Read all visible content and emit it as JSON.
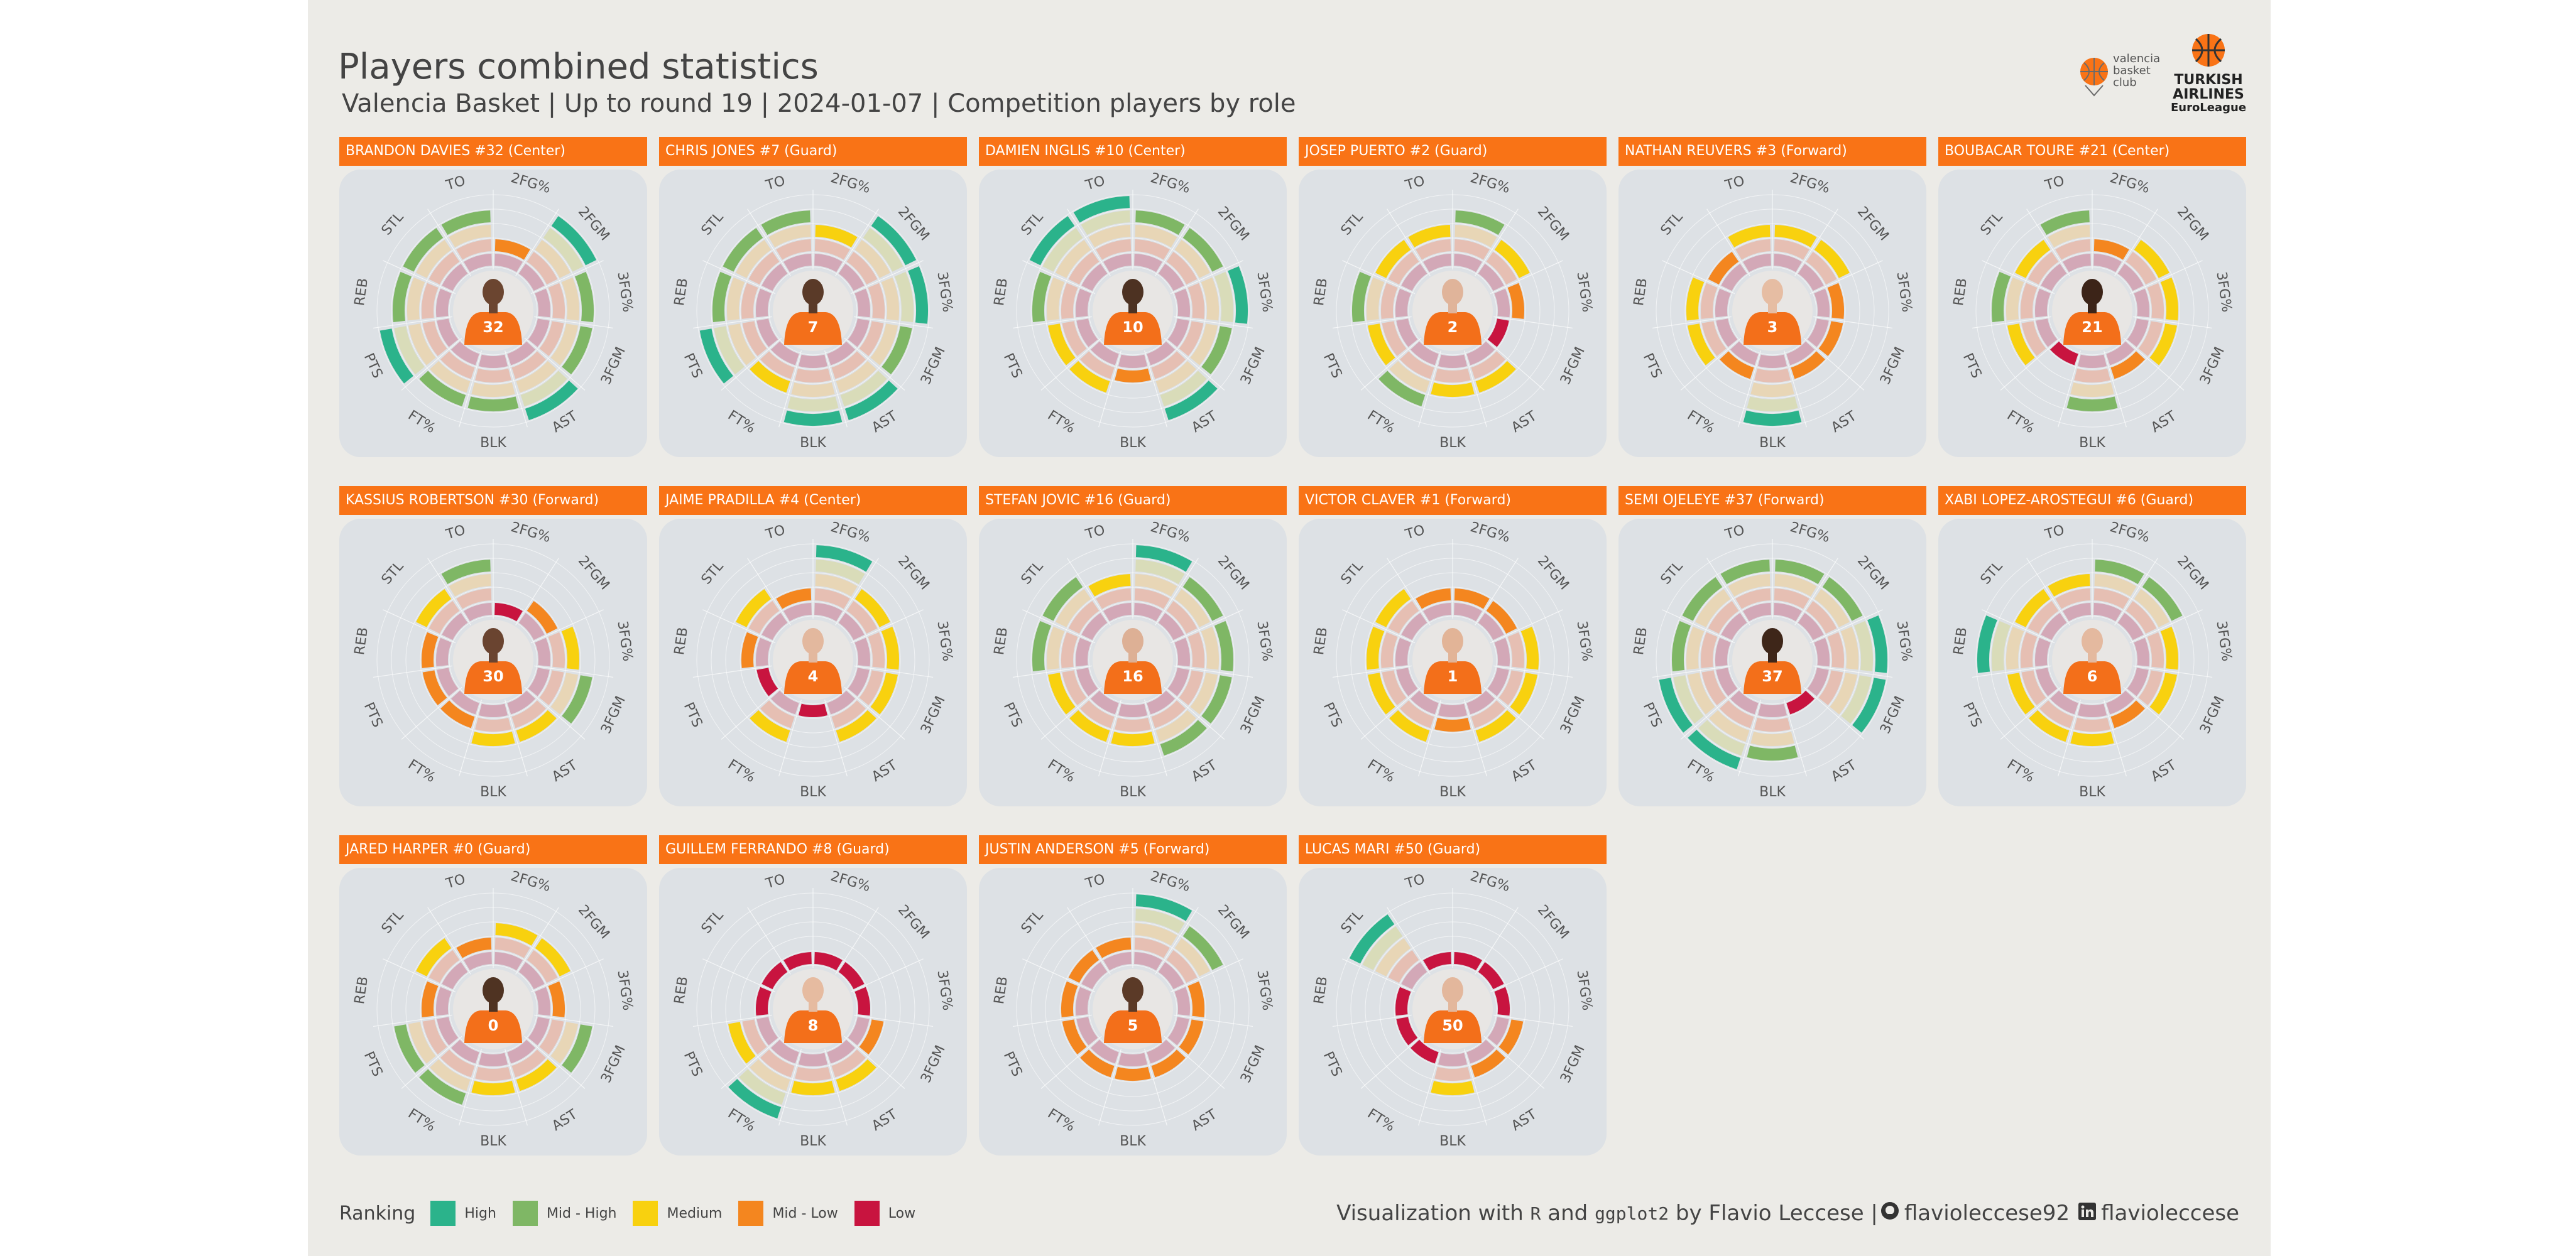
{
  "header": {
    "title": "Players combined statistics",
    "subtitle": "Valencia Basket | Up to round 19 | 2024-01-07 | Competition players by role"
  },
  "logos": {
    "club_lines": "valencia\nbasket\nclub",
    "league_line1": "TURKISH\nAIRLINES",
    "league_line2": "EuroLeague"
  },
  "colors": {
    "panel_bg": "#ecebe7",
    "header_orange": "#f97316",
    "plate": "#dde1e5",
    "high": "#2bb38b",
    "mid_high": "#7fb765",
    "medium": "#f8d10f",
    "mid_low": "#f4861f",
    "low": "#c8143f",
    "ring_bg": "#d3a8b7"
  },
  "legend": {
    "title": "Ranking",
    "items": [
      {
        "label": "High",
        "color": "#2bb38b"
      },
      {
        "label": "Mid - High",
        "color": "#7fb765"
      },
      {
        "label": "Medium",
        "color": "#f8d10f"
      },
      {
        "label": "Mid - Low",
        "color": "#f4861f"
      },
      {
        "label": "Low",
        "color": "#c8143f"
      }
    ]
  },
  "credit": {
    "prefix": "Visualization with",
    "r": "R",
    "and": "and",
    "pkg": "ggplot2",
    "by": "by Flavio Leccese |",
    "github": "flavioleccese92",
    "linkedin": "flavioleccese"
  },
  "chart_data": {
    "type": "radial-bar",
    "categories": [
      "2FG%",
      "2FGM",
      "3FG%",
      "3FGM",
      "AST",
      "BLK",
      "FT%",
      "PTS",
      "REB",
      "STL",
      "TO"
    ],
    "levels": [
      "Low",
      "Mid - Low",
      "Medium",
      "Mid - High",
      "High"
    ],
    "players": [
      {
        "label": "BRANDON DAVIES #32 (Center)",
        "number": "32",
        "skin": "#6b4530",
        "ranks": [
          2,
          5,
          4,
          4,
          5,
          4,
          4,
          5,
          4,
          4,
          4
        ]
      },
      {
        "label": "CHRIS JONES #7 (Guard)",
        "number": "7",
        "skin": "#5a3a28",
        "ranks": [
          3,
          5,
          5,
          4,
          5,
          5,
          3,
          5,
          4,
          4,
          4
        ]
      },
      {
        "label": "DAMIEN INGLIS #10 (Center)",
        "number": "10",
        "skin": "#4d3222",
        "ranks": [
          4,
          4,
          5,
          4,
          5,
          2,
          3,
          3,
          4,
          5,
          5
        ]
      },
      {
        "label": "JOSEP PUERTO #2 (Guard)",
        "number": "2",
        "skin": "#e0b49a",
        "ranks": [
          4,
          3,
          2,
          1,
          3,
          3,
          4,
          3,
          4,
          3,
          3
        ]
      },
      {
        "label": "NATHAN REUVERS #3 (Forward)",
        "number": "3",
        "skin": "#e6bda3",
        "ranks": [
          3,
          3,
          2,
          2,
          2,
          5,
          2,
          3,
          3,
          2,
          3
        ]
      },
      {
        "label": "BOUBACAR TOURE #21 (Center)",
        "number": "21",
        "skin": "#3c2418",
        "ranks": [
          2,
          3,
          3,
          3,
          2,
          4,
          1,
          3,
          4,
          3,
          4
        ]
      },
      {
        "label": "KASSIUS ROBERTSON #30 (Forward)",
        "number": "30",
        "skin": "#6a4430",
        "ranks": [
          1,
          2,
          3,
          4,
          3,
          3,
          2,
          2,
          2,
          3,
          4
        ]
      },
      {
        "label": "JAIME PRADILLA #4 (Center)",
        "number": "4",
        "skin": "#e3b89e",
        "ranks": [
          5,
          3,
          3,
          3,
          3,
          1,
          3,
          1,
          2,
          3,
          2
        ]
      },
      {
        "label": "STEFAN JOVIC #16 (Guard)",
        "number": "16",
        "skin": "#ddb095",
        "ranks": [
          5,
          4,
          4,
          4,
          4,
          3,
          3,
          3,
          4,
          4,
          3
        ]
      },
      {
        "label": "VICTOR CLAVER #1 (Forward)",
        "number": "1",
        "skin": "#e2b497",
        "ranks": [
          2,
          2,
          3,
          3,
          3,
          2,
          3,
          3,
          3,
          3,
          2
        ]
      },
      {
        "label": "SEMI OJELEYE #37 (Forward)",
        "number": "37",
        "skin": "#3e2619",
        "ranks": [
          4,
          4,
          5,
          5,
          1,
          4,
          5,
          5,
          4,
          4,
          4
        ]
      },
      {
        "label": "XABI LOPEZ-AROSTEGUI #6 (Guard)",
        "number": "6",
        "skin": "#e4b99f",
        "ranks": [
          4,
          4,
          3,
          3,
          2,
          3,
          3,
          3,
          5,
          3,
          3
        ]
      },
      {
        "label": "JARED HARPER #0 (Guard)",
        "number": "0",
        "skin": "#4f3322",
        "ranks": [
          3,
          3,
          2,
          4,
          3,
          3,
          4,
          4,
          2,
          3,
          2
        ]
      },
      {
        "label": "GUILLEM FERRANDO #8 (Guard)",
        "number": "8",
        "skin": "#e6bba0",
        "ranks": [
          1,
          1,
          1,
          2,
          3,
          3,
          5,
          3,
          1,
          1,
          1
        ]
      },
      {
        "label": "JUSTIN ANDERSON #5 (Forward)",
        "number": "5",
        "skin": "#5b3a27",
        "ranks": [
          5,
          4,
          2,
          2,
          2,
          2,
          2,
          2,
          2,
          2,
          2
        ]
      },
      {
        "label": "LUCAS MARI #50 (Guard)",
        "number": "50",
        "skin": "#e3b79c",
        "ranks": [
          1,
          1,
          1,
          2,
          2,
          3,
          1,
          1,
          1,
          5,
          1
        ]
      }
    ]
  }
}
